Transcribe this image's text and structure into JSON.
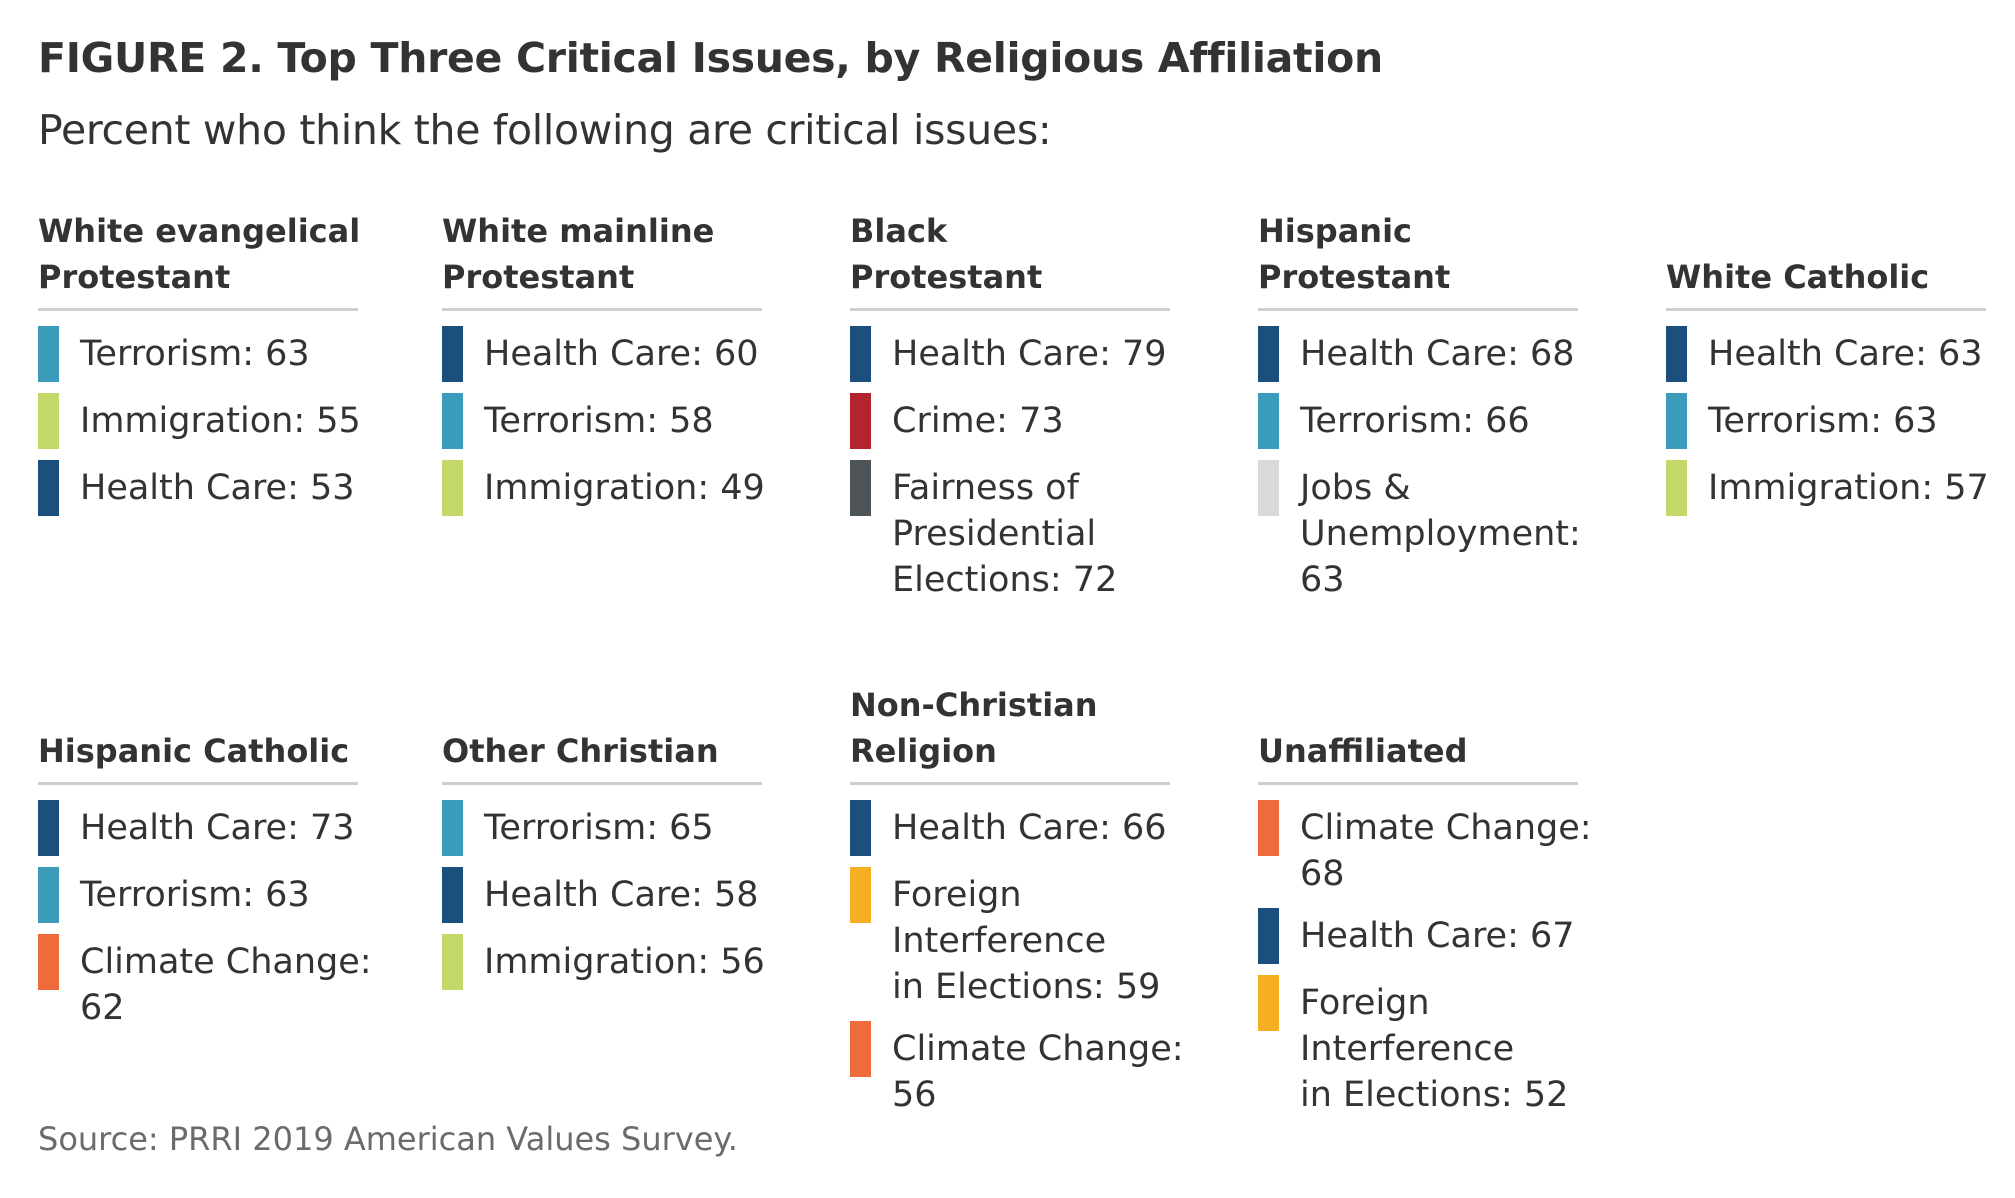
{
  "title": "FIGURE 2. Top Three Critical Issues, by Religious Affiliation",
  "subtitle": "Percent who think the following are critical issues:",
  "source": "Source: PRRI 2019 American Values Survey.",
  "colors": {
    "Terrorism": "#3a9bba",
    "Immigration": "#c2d96a",
    "Health Care": "#1b507c",
    "Crime": "#b3242c",
    "Fairness of Presidential Elections": "#4d5458",
    "Jobs & Unemployment": "#d9d9d9",
    "Climate Change": "#ee6c3b",
    "Foreign Interference in Elections": "#f6ae23"
  },
  "chart_data": {
    "type": "table",
    "groups": [
      {
        "name": "White evangelical\nProtestant",
        "issues": [
          {
            "issue": "Terrorism",
            "label": "Terrorism: 63",
            "value": 63
          },
          {
            "issue": "Immigration",
            "label": "Immigration: 55",
            "value": 55
          },
          {
            "issue": "Health Care",
            "label": "Health Care: 53",
            "value": 53
          }
        ]
      },
      {
        "name": "White mainline\nProtestant",
        "issues": [
          {
            "issue": "Health Care",
            "label": "Health Care: 60",
            "value": 60
          },
          {
            "issue": "Terrorism",
            "label": "Terrorism: 58",
            "value": 58
          },
          {
            "issue": "Immigration",
            "label": "Immigration: 49",
            "value": 49
          }
        ]
      },
      {
        "name": "Black\nProtestant",
        "issues": [
          {
            "issue": "Health Care",
            "label": "Health Care: 79",
            "value": 79
          },
          {
            "issue": "Crime",
            "label": "Crime: 73",
            "value": 73
          },
          {
            "issue": "Fairness of Presidential Elections",
            "label": "Fairness of\nPresidential\nElections: 72",
            "value": 72
          }
        ]
      },
      {
        "name": "Hispanic\nProtestant",
        "issues": [
          {
            "issue": "Health Care",
            "label": "Health Care: 68",
            "value": 68
          },
          {
            "issue": "Terrorism",
            "label": "Terrorism: 66",
            "value": 66
          },
          {
            "issue": "Jobs & Unemployment",
            "label": "Jobs &\nUnemployment: 63",
            "value": 63
          }
        ]
      },
      {
        "name": "White Catholic",
        "issues": [
          {
            "issue": "Health Care",
            "label": "Health Care: 63",
            "value": 63
          },
          {
            "issue": "Terrorism",
            "label": "Terrorism: 63",
            "value": 63
          },
          {
            "issue": "Immigration",
            "label": "Immigration: 57",
            "value": 57
          }
        ]
      },
      {
        "name": "Hispanic Catholic",
        "issues": [
          {
            "issue": "Health Care",
            "label": "Health Care: 73",
            "value": 73
          },
          {
            "issue": "Terrorism",
            "label": "Terrorism: 63",
            "value": 63
          },
          {
            "issue": "Climate Change",
            "label": "Climate Change: 62",
            "value": 62
          }
        ]
      },
      {
        "name": "Other Christian",
        "issues": [
          {
            "issue": "Terrorism",
            "label": "Terrorism: 65",
            "value": 65
          },
          {
            "issue": "Health Care",
            "label": "Health Care: 58",
            "value": 58
          },
          {
            "issue": "Immigration",
            "label": "Immigration: 56",
            "value": 56
          }
        ]
      },
      {
        "name": "Non-Christian\nReligion",
        "issues": [
          {
            "issue": "Health Care",
            "label": "Health Care: 66",
            "value": 66
          },
          {
            "issue": "Foreign Interference in Elections",
            "label": "Foreign Interference\nin Elections: 59",
            "value": 59
          },
          {
            "issue": "Climate Change",
            "label": "Climate Change: 56",
            "value": 56
          }
        ]
      },
      {
        "name": "Unaffiliated",
        "issues": [
          {
            "issue": "Climate Change",
            "label": "Climate Change: 68",
            "value": 68
          },
          {
            "issue": "Health Care",
            "label": "Health Care: 67",
            "value": 67
          },
          {
            "issue": "Foreign Interference in Elections",
            "label": "Foreign Interference\nin Elections: 52",
            "value": 52
          }
        ]
      }
    ]
  }
}
